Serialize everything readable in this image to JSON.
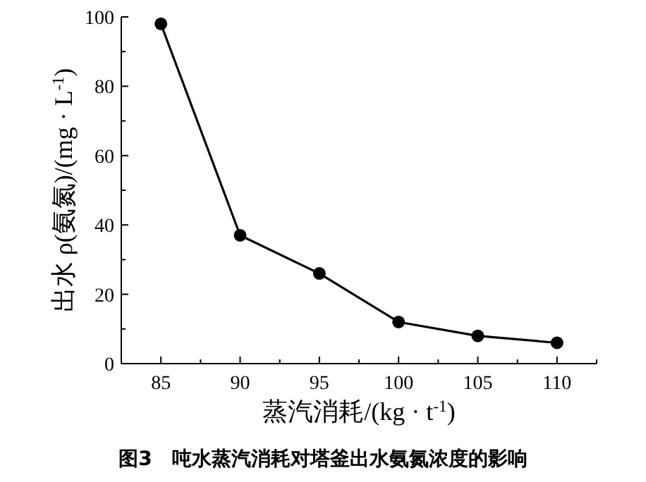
{
  "chart_data": {
    "type": "line",
    "title": "图3　吨水蒸汽消耗对塔釜出水氨氮浓度的影响",
    "xlabel": "蒸汽消耗/(kg · t$^{-1}$)",
    "ylabel": "出水 ρ(氨氮)/(mg · L$^{-1}$)",
    "x": [
      85,
      90,
      95,
      100,
      105,
      110
    ],
    "series": [
      {
        "color": "#000000",
        "values": [
          98,
          37,
          26,
          12,
          8,
          6
        ]
      }
    ],
    "xlim": [
      82.5,
      112.5
    ],
    "xticks": [
      {
        "value": 82.5,
        "label": null
      },
      85,
      {
        "value": 87.5,
        "label": null
      },
      90,
      {
        "value": 92.5,
        "label": null
      },
      95,
      {
        "value": 97.5,
        "label": null
      },
      100,
      {
        "value": 102.5,
        "label": null
      },
      105,
      {
        "value": 107.5,
        "label": null
      },
      110,
      {
        "value": 112.5,
        "label": null
      }
    ],
    "ylim": [
      0,
      100
    ],
    "yticks": [
      0,
      {
        "value": 10,
        "label": null
      },
      20,
      {
        "value": 30,
        "label": null
      },
      40,
      {
        "value": 50,
        "label": null
      },
      60,
      {
        "value": 70,
        "label": null
      },
      80,
      {
        "value": 90,
        "label": null
      },
      100
    ],
    "grid": false,
    "marker": "circle",
    "line_style": "solid"
  }
}
